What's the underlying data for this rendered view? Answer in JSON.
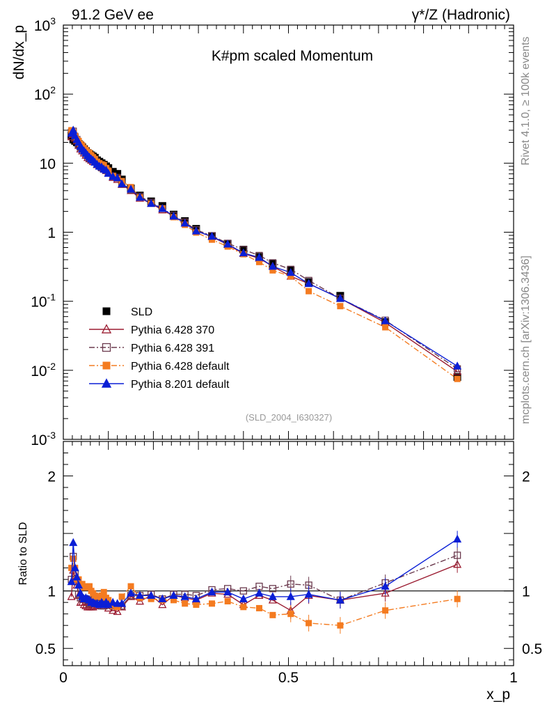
{
  "header": {
    "left": "91.2 GeV ee",
    "right": "γ*/Z (Hadronic)"
  },
  "side_labels": {
    "rivet": "Rivet 4.1.0, ≥ 100k events",
    "mcplots": "mcplots.cern.ch [arXiv:1306.3436]"
  },
  "chart_data": [
    {
      "type": "scatter",
      "title": "K#pm scaled Momentum",
      "analysis_tag": "(SLD_2004_I630327)",
      "xlabel": "x_p",
      "ylabel": "dN/dx_p",
      "xlim": [
        0,
        1
      ],
      "ylim": [
        0.001,
        1000
      ],
      "yscale": "log",
      "x_tick_labels": [
        "0",
        "0.5",
        "1"
      ],
      "y_tick_labels": [
        "10^-3",
        "10^-2",
        "10^-1",
        "1",
        "10",
        "10^2",
        "10^3"
      ],
      "legend_position": "lower-left",
      "series": [
        {
          "name": "SLD",
          "color": "#000000",
          "marker": "square-filled",
          "line": "none",
          "x": [
            0.018,
            0.022,
            0.026,
            0.03,
            0.034,
            0.038,
            0.042,
            0.046,
            0.05,
            0.054,
            0.058,
            0.062,
            0.066,
            0.07,
            0.075,
            0.08,
            0.085,
            0.09,
            0.095,
            0.1,
            0.11,
            0.12,
            0.13,
            0.15,
            0.17,
            0.195,
            0.22,
            0.245,
            0.27,
            0.295,
            0.33,
            0.365,
            0.4,
            0.435,
            0.465,
            0.505,
            0.545,
            0.615,
            0.715,
            0.875
          ],
          "values": [
            25,
            22,
            21,
            20,
            19,
            18,
            17,
            16,
            15,
            14,
            13.5,
            13,
            12.5,
            12,
            11,
            10.5,
            10,
            9.5,
            9,
            8.5,
            7.5,
            7,
            5.8,
            4.3,
            3.4,
            2.8,
            2.4,
            1.8,
            1.45,
            1.12,
            0.88,
            0.68,
            0.56,
            0.44,
            0.35,
            0.28,
            0.19,
            0.12,
            0.05,
            0.008
          ]
        },
        {
          "name": "Pythia 6.428 370",
          "color": "#9b1c31",
          "marker": "triangle-open",
          "line": "solid",
          "x": [
            0.018,
            0.022,
            0.026,
            0.03,
            0.034,
            0.038,
            0.042,
            0.046,
            0.05,
            0.054,
            0.058,
            0.062,
            0.066,
            0.07,
            0.075,
            0.08,
            0.085,
            0.09,
            0.095,
            0.1,
            0.11,
            0.12,
            0.13,
            0.15,
            0.17,
            0.195,
            0.22,
            0.245,
            0.27,
            0.295,
            0.33,
            0.365,
            0.4,
            0.435,
            0.465,
            0.505,
            0.545,
            0.615,
            0.715,
            0.875
          ],
          "values": [
            24,
            26,
            23,
            21,
            18,
            16,
            15,
            14,
            13,
            12,
            11.5,
            11,
            10.5,
            10.5,
            9.5,
            9.2,
            8.8,
            8.4,
            7.8,
            7.2,
            6.2,
            5.8,
            4.9,
            4.0,
            3.1,
            2.6,
            2.1,
            1.7,
            1.37,
            1.04,
            0.86,
            0.66,
            0.49,
            0.42,
            0.32,
            0.23,
            0.18,
            0.11,
            0.049,
            0.0096
          ]
        },
        {
          "name": "Pythia 6.428 391",
          "color": "#6b3a4e",
          "marker": "square-open",
          "line": "dashdot",
          "x": [
            0.018,
            0.022,
            0.026,
            0.03,
            0.034,
            0.038,
            0.042,
            0.046,
            0.05,
            0.054,
            0.058,
            0.062,
            0.066,
            0.07,
            0.075,
            0.08,
            0.085,
            0.09,
            0.095,
            0.1,
            0.11,
            0.12,
            0.13,
            0.15,
            0.17,
            0.195,
            0.22,
            0.245,
            0.27,
            0.295,
            0.33,
            0.365,
            0.4,
            0.435,
            0.465,
            0.505,
            0.545,
            0.615,
            0.715,
            0.875
          ],
          "values": [
            28,
            29,
            24,
            22,
            18.5,
            17,
            16,
            15,
            13.8,
            12.8,
            11.8,
            11.5,
            11.4,
            11,
            9.8,
            9.4,
            8.6,
            8.2,
            8.2,
            7.5,
            6.5,
            6.2,
            5.0,
            4.1,
            3.3,
            2.7,
            2.2,
            1.75,
            1.4,
            1.08,
            0.89,
            0.69,
            0.56,
            0.46,
            0.36,
            0.29,
            0.2,
            0.11,
            0.053,
            0.0105
          ]
        },
        {
          "name": "Pythia 6.428 default",
          "color": "#f47b20",
          "marker": "square-filled",
          "line": "dashdot",
          "x": [
            0.018,
            0.022,
            0.026,
            0.03,
            0.034,
            0.038,
            0.042,
            0.046,
            0.05,
            0.054,
            0.058,
            0.062,
            0.066,
            0.07,
            0.075,
            0.08,
            0.085,
            0.09,
            0.095,
            0.1,
            0.11,
            0.12,
            0.13,
            0.15,
            0.17,
            0.195,
            0.22,
            0.245,
            0.27,
            0.295,
            0.33,
            0.365,
            0.4,
            0.435,
            0.465,
            0.505,
            0.545,
            0.615,
            0.715,
            0.875
          ],
          "values": [
            30,
            28,
            25,
            22,
            21,
            19,
            18,
            16.5,
            15.5,
            14.5,
            14,
            13,
            12.2,
            11.5,
            10.5,
            10,
            9.6,
            9.4,
            8.5,
            7.8,
            6.5,
            6.0,
            5.5,
            4.5,
            3.2,
            2.6,
            2.2,
            1.65,
            1.28,
            0.99,
            0.78,
            0.62,
            0.48,
            0.37,
            0.28,
            0.23,
            0.14,
            0.085,
            0.042,
            0.0075
          ]
        },
        {
          "name": "Pythia 8.201 default",
          "color": "#0a1fd6",
          "marker": "triangle-filled",
          "line": "solid",
          "x": [
            0.018,
            0.022,
            0.026,
            0.03,
            0.034,
            0.038,
            0.042,
            0.046,
            0.05,
            0.054,
            0.058,
            0.062,
            0.066,
            0.07,
            0.075,
            0.08,
            0.085,
            0.09,
            0.095,
            0.1,
            0.11,
            0.12,
            0.13,
            0.15,
            0.17,
            0.195,
            0.22,
            0.245,
            0.27,
            0.295,
            0.33,
            0.365,
            0.4,
            0.435,
            0.465,
            0.505,
            0.545,
            0.615,
            0.715,
            0.875
          ],
          "values": [
            27,
            30,
            25,
            22,
            20,
            17.5,
            16,
            15,
            14,
            13,
            12.2,
            11.5,
            11,
            10.3,
            9.6,
            9.0,
            8.8,
            8.2,
            7.9,
            7.1,
            6.4,
            6.1,
            5.0,
            4.2,
            3.2,
            2.6,
            2.2,
            1.7,
            1.35,
            1.04,
            0.87,
            0.67,
            0.5,
            0.43,
            0.32,
            0.26,
            0.18,
            0.11,
            0.052,
            0.0115
          ]
        }
      ]
    },
    {
      "type": "line",
      "ylabel": "Ratio to SLD",
      "xlabel": "x_p",
      "xlim": [
        0,
        1
      ],
      "ylim": [
        0.35,
        2.3
      ],
      "y_tick_labels": [
        "0.5",
        "1",
        "2"
      ],
      "reference_line": 1,
      "series": [
        {
          "name": "Pythia 6.428 370",
          "color": "#9b1c31",
          "x": [
            0.018,
            0.022,
            0.026,
            0.03,
            0.034,
            0.038,
            0.042,
            0.046,
            0.05,
            0.054,
            0.058,
            0.062,
            0.066,
            0.07,
            0.075,
            0.08,
            0.085,
            0.09,
            0.095,
            0.1,
            0.11,
            0.12,
            0.13,
            0.15,
            0.17,
            0.195,
            0.22,
            0.245,
            0.27,
            0.295,
            0.33,
            0.365,
            0.4,
            0.435,
            0.465,
            0.505,
            0.545,
            0.615,
            0.715,
            0.875
          ],
          "values": [
            0.95,
            1.18,
            1.1,
            1.05,
            0.96,
            0.9,
            0.9,
            0.88,
            0.87,
            0.86,
            0.86,
            0.86,
            0.86,
            0.87,
            0.87,
            0.88,
            0.88,
            0.87,
            0.88,
            0.85,
            0.83,
            0.82,
            0.86,
            0.95,
            0.91,
            0.96,
            0.88,
            0.96,
            0.94,
            0.92,
            0.98,
            0.97,
            0.88,
            0.96,
            0.92,
            0.83,
            0.96,
            0.92,
            0.98,
            1.23
          ]
        },
        {
          "name": "Pythia 6.428 391",
          "color": "#6b3a4e",
          "x": [
            0.018,
            0.022,
            0.026,
            0.03,
            0.034,
            0.038,
            0.042,
            0.046,
            0.05,
            0.054,
            0.058,
            0.062,
            0.066,
            0.07,
            0.075,
            0.08,
            0.085,
            0.09,
            0.095,
            0.1,
            0.11,
            0.12,
            0.13,
            0.15,
            0.17,
            0.195,
            0.22,
            0.245,
            0.27,
            0.295,
            0.33,
            0.365,
            0.4,
            0.435,
            0.465,
            0.505,
            0.545,
            0.615,
            0.715,
            0.875
          ],
          "values": [
            1.1,
            1.3,
            1.15,
            1.08,
            0.97,
            0.94,
            0.93,
            0.93,
            0.93,
            0.92,
            0.89,
            0.9,
            0.92,
            0.93,
            0.89,
            0.89,
            0.87,
            0.87,
            0.9,
            0.88,
            0.87,
            0.87,
            0.87,
            0.96,
            0.96,
            0.97,
            0.93,
            0.97,
            0.97,
            0.96,
            1.01,
            1.02,
            1.0,
            1.04,
            1.02,
            1.06,
            1.05,
            0.92,
            1.07,
            1.31
          ]
        },
        {
          "name": "Pythia 6.428 default",
          "color": "#f47b20",
          "x": [
            0.018,
            0.022,
            0.026,
            0.03,
            0.034,
            0.038,
            0.042,
            0.046,
            0.05,
            0.054,
            0.058,
            0.062,
            0.066,
            0.07,
            0.075,
            0.08,
            0.085,
            0.09,
            0.095,
            0.1,
            0.11,
            0.12,
            0.13,
            0.15,
            0.17,
            0.195,
            0.22,
            0.245,
            0.27,
            0.295,
            0.33,
            0.365,
            0.4,
            0.435,
            0.465,
            0.505,
            0.545,
            0.615,
            0.715,
            0.875
          ],
          "values": [
            1.2,
            1.28,
            1.2,
            1.1,
            1.1,
            1.05,
            1.06,
            1.03,
            1.03,
            1.04,
            1.04,
            1.0,
            0.98,
            0.96,
            0.95,
            0.95,
            0.96,
            0.99,
            0.94,
            0.92,
            0.87,
            0.86,
            0.95,
            1.04,
            0.94,
            0.93,
            0.92,
            0.92,
            0.89,
            0.88,
            0.89,
            0.91,
            0.86,
            0.85,
            0.79,
            0.8,
            0.72,
            0.7,
            0.83,
            0.93
          ]
        },
        {
          "name": "Pythia 8.201 default",
          "color": "#0a1fd6",
          "x": [
            0.018,
            0.022,
            0.026,
            0.03,
            0.034,
            0.038,
            0.042,
            0.046,
            0.05,
            0.054,
            0.058,
            0.062,
            0.066,
            0.07,
            0.075,
            0.08,
            0.085,
            0.09,
            0.095,
            0.1,
            0.11,
            0.12,
            0.13,
            0.15,
            0.17,
            0.195,
            0.22,
            0.245,
            0.27,
            0.295,
            0.33,
            0.365,
            0.4,
            0.435,
            0.465,
            0.505,
            0.545,
            0.615,
            0.715,
            0.875
          ],
          "values": [
            1.08,
            1.42,
            1.2,
            1.12,
            1.05,
            0.98,
            0.95,
            0.93,
            0.94,
            0.93,
            0.92,
            0.9,
            0.9,
            0.89,
            0.89,
            0.88,
            0.9,
            0.88,
            0.9,
            0.88,
            0.9,
            0.89,
            0.89,
            0.98,
            0.96,
            0.96,
            0.93,
            0.96,
            0.95,
            0.93,
            0.99,
            0.99,
            0.93,
            0.98,
            0.95,
            0.95,
            0.97,
            0.92,
            1.04,
            1.45
          ]
        }
      ]
    }
  ]
}
